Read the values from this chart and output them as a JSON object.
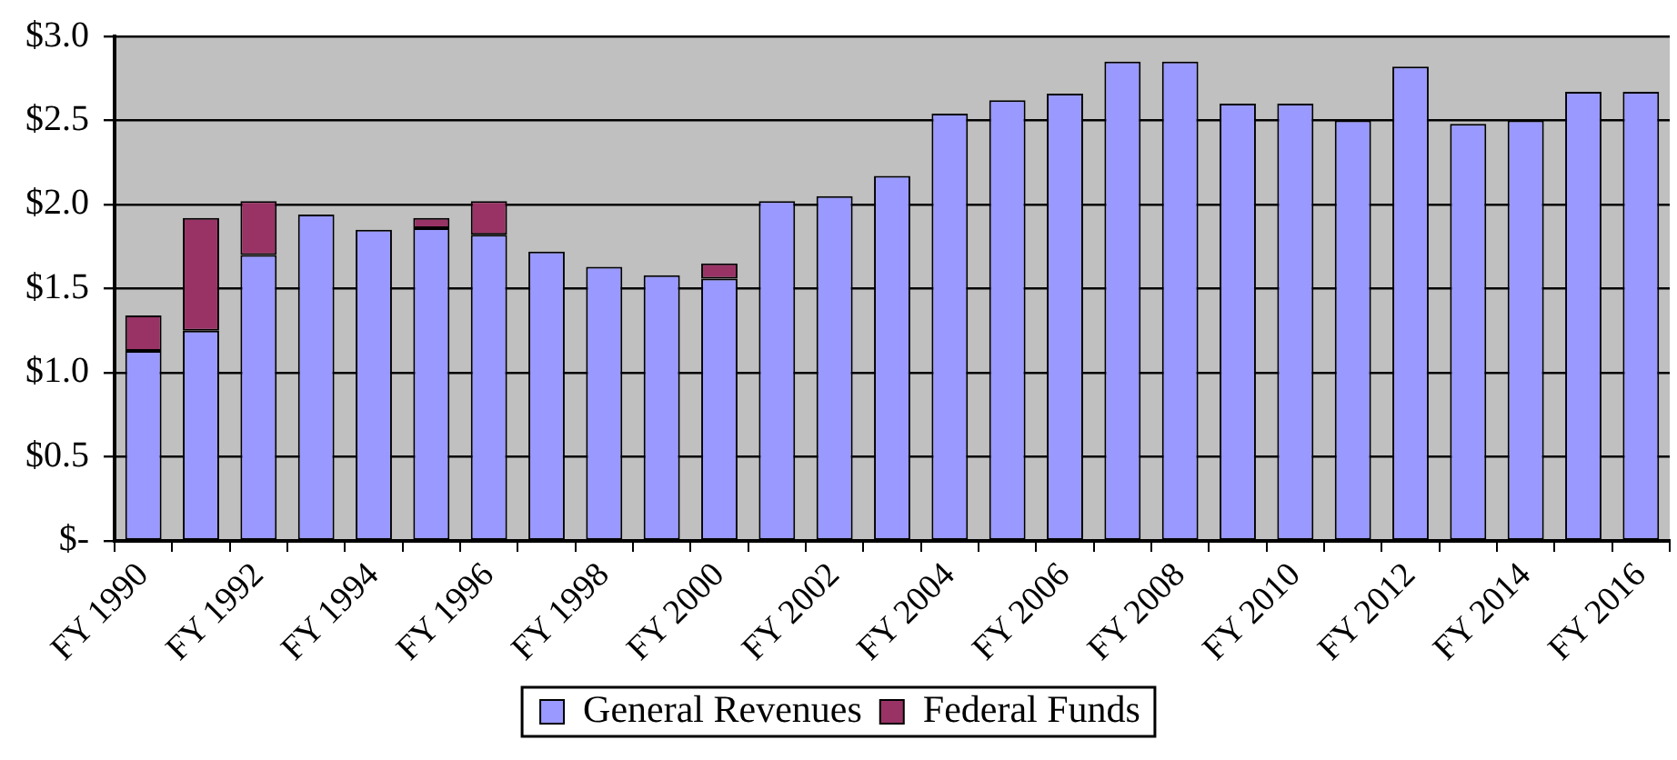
{
  "chart_data": {
    "type": "bar",
    "stacked": true,
    "categories": [
      "FY 1990",
      null,
      "FY 1992",
      null,
      "FY 1994",
      null,
      "FY 1996",
      null,
      "FY 1998",
      null,
      "FY 2000",
      null,
      "FY 2002",
      null,
      "FY 2004",
      null,
      "FY 2006",
      null,
      "FY 2008",
      null,
      "FY 2010",
      null,
      "FY 2012",
      null,
      "FY 2014",
      null,
      "FY 2016"
    ],
    "series": [
      {
        "name": "General Revenues",
        "color": "#9999ff",
        "values": [
          1.13,
          1.25,
          1.7,
          1.94,
          1.85,
          1.86,
          1.82,
          1.72,
          1.63,
          1.58,
          1.56,
          2.02,
          2.05,
          2.17,
          2.54,
          2.62,
          2.66,
          2.85,
          2.85,
          2.6,
          2.6,
          2.5,
          2.82,
          2.48,
          2.5,
          2.67,
          2.67
        ]
      },
      {
        "name": "Federal Funds",
        "color": "#993366",
        "values": [
          0.21,
          0.67,
          0.32,
          null,
          null,
          0.06,
          0.2,
          null,
          null,
          null,
          0.09,
          null,
          null,
          null,
          null,
          null,
          null,
          null,
          null,
          null,
          null,
          null,
          null,
          null,
          null,
          null,
          null
        ]
      }
    ],
    "ylim": [
      0,
      3
    ],
    "yticks": [
      {
        "value": 0,
        "label": "$-"
      },
      {
        "value": 0.5,
        "label": "$0.5"
      },
      {
        "value": 1,
        "label": "$1.0"
      },
      {
        "value": 1.5,
        "label": "$1.5"
      },
      {
        "value": 2,
        "label": "$2.0"
      },
      {
        "value": 2.5,
        "label": "$2.5"
      },
      {
        "value": 3,
        "label": "$3.0"
      }
    ],
    "grid": "y",
    "legend": "bottom"
  }
}
